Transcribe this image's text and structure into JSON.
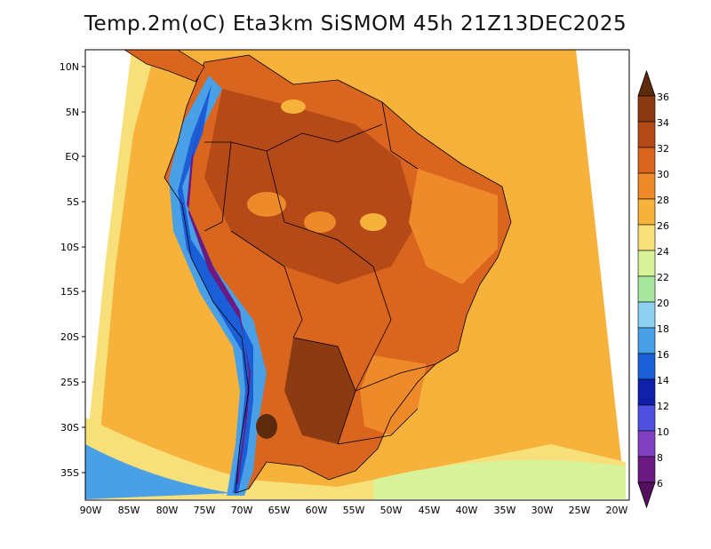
{
  "title": "Temp.2m(oC) Eta3km SiSMOM 45h 21Z13DEC2025",
  "lat_ticks": [
    "10N",
    "5N",
    "EQ",
    "5S",
    "10S",
    "15S",
    "20S",
    "25S",
    "30S",
    "35S"
  ],
  "lon_ticks": [
    "90W",
    "85W",
    "80W",
    "75W",
    "70W",
    "65W",
    "60W",
    "55W",
    "50W",
    "45W",
    "40W",
    "35W",
    "30W",
    "25W",
    "20W"
  ],
  "colorbar": {
    "labels": [
      "36",
      "34",
      "32",
      "30",
      "28",
      "26",
      "24",
      "22",
      "20",
      "18",
      "16",
      "14",
      "12",
      "10",
      "8",
      "6"
    ],
    "colors": [
      "#5e2a0c",
      "#8b3a12",
      "#b34a17",
      "#d9651f",
      "#ee8a2a",
      "#f6b23a",
      "#f7e07a",
      "#d8f29a",
      "#a8e6a0",
      "#8ed0f0",
      "#4aa0e6",
      "#1a5fd8",
      "#1020a8",
      "#5050e0",
      "#8040c0",
      "#6a1a80"
    ],
    "top_color": "#5e2a0c",
    "bottom_color": "#55105f"
  },
  "map": {
    "ocean_color": "#f6b23a",
    "coast_color": "#f7e07a"
  }
}
